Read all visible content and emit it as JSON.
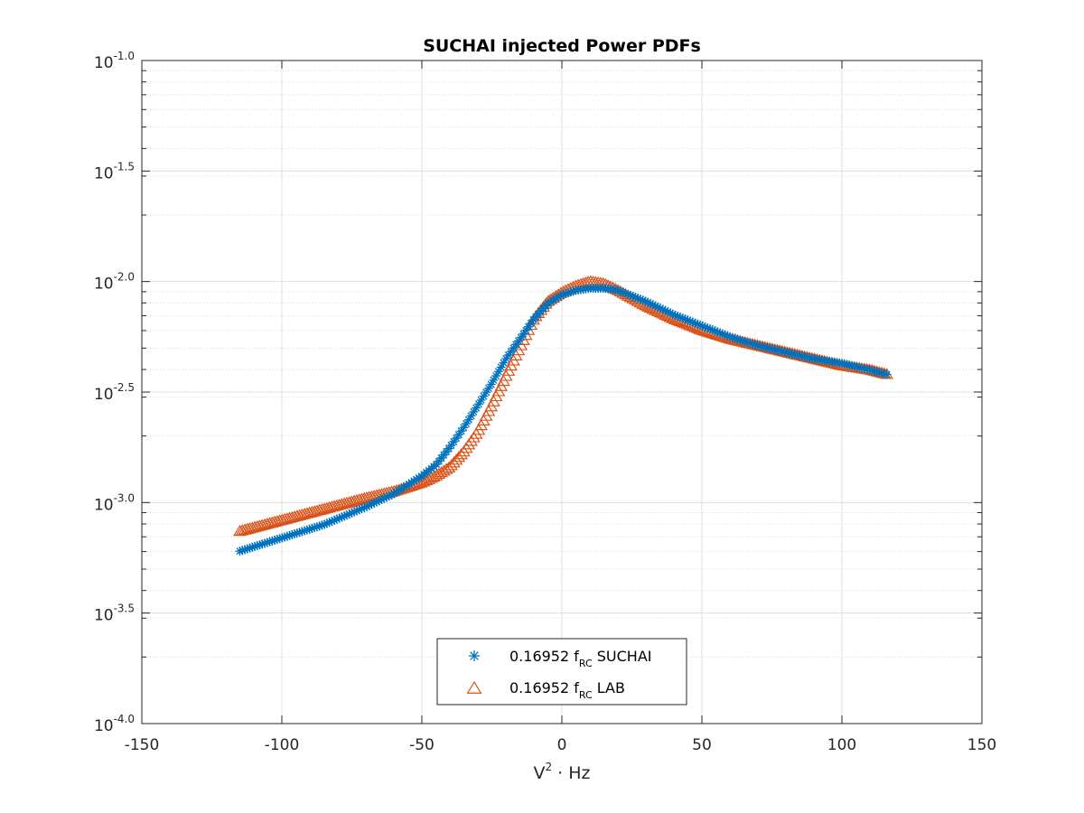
{
  "chart_data": {
    "type": "scatter",
    "title": "SUCHAI injected Power PDFs",
    "xlabel": {
      "base": "V",
      "superscript": "2",
      "rest": " · Hz"
    },
    "ylabel": "",
    "xlim": [
      -150,
      150
    ],
    "ylim_log10": [
      -4.0,
      -1.0
    ],
    "y_scale": "log",
    "grid": "on (major and minor)",
    "legend_position": "bottom-center",
    "x_ticks": [
      "-150",
      "-100",
      "-50",
      "0",
      "50",
      "100",
      "150"
    ],
    "y_ticks": [
      {
        "base": "10",
        "exp": "-4.0"
      },
      {
        "base": "10",
        "exp": "-3.5"
      },
      {
        "base": "10",
        "exp": "-3.0"
      },
      {
        "base": "10",
        "exp": "-2.5"
      },
      {
        "base": "10",
        "exp": "-2.0"
      },
      {
        "base": "10",
        "exp": "-1.5"
      },
      {
        "base": "10",
        "exp": "-1.0"
      }
    ],
    "series": [
      {
        "name": "0.16952 f_RC SUCHAI",
        "legend": {
          "value": "0.16952 f",
          "sub": "RC",
          "tail": " SUCHAI"
        },
        "marker": "asterisk",
        "color": "#0072BD",
        "x": [
          -115,
          -100,
          -85,
          -70,
          -60,
          -50,
          -45,
          -40,
          -35,
          -30,
          -25,
          -20,
          -15,
          -10,
          -5,
          0,
          5,
          10,
          15,
          20,
          30,
          40,
          50,
          60,
          70,
          80,
          90,
          100,
          110,
          116
        ],
        "log10y": [
          -3.22,
          -3.16,
          -3.1,
          -3.02,
          -2.96,
          -2.88,
          -2.83,
          -2.75,
          -2.66,
          -2.56,
          -2.46,
          -2.35,
          -2.26,
          -2.17,
          -2.1,
          -2.06,
          -2.04,
          -2.03,
          -2.03,
          -2.04,
          -2.09,
          -2.15,
          -2.2,
          -2.25,
          -2.29,
          -2.32,
          -2.35,
          -2.37,
          -2.4,
          -2.42
        ]
      },
      {
        "name": "0.16952 f_RC LAB",
        "legend": {
          "value": "0.16952 f",
          "sub": "RC",
          "tail": " LAB"
        },
        "marker": "triangle",
        "color": "#D95319",
        "x": [
          -115,
          -100,
          -85,
          -70,
          -60,
          -50,
          -45,
          -40,
          -35,
          -30,
          -25,
          -20,
          -15,
          -10,
          -5,
          0,
          5,
          10,
          15,
          20,
          30,
          40,
          50,
          60,
          70,
          80,
          90,
          100,
          110,
          116
        ],
        "log10y": [
          -3.13,
          -3.08,
          -3.03,
          -2.98,
          -2.95,
          -2.91,
          -2.88,
          -2.84,
          -2.77,
          -2.68,
          -2.56,
          -2.43,
          -2.3,
          -2.17,
          -2.09,
          -2.05,
          -2.02,
          -2.0,
          -2.01,
          -2.04,
          -2.11,
          -2.17,
          -2.22,
          -2.26,
          -2.29,
          -2.32,
          -2.35,
          -2.38,
          -2.4,
          -2.42
        ]
      }
    ]
  }
}
